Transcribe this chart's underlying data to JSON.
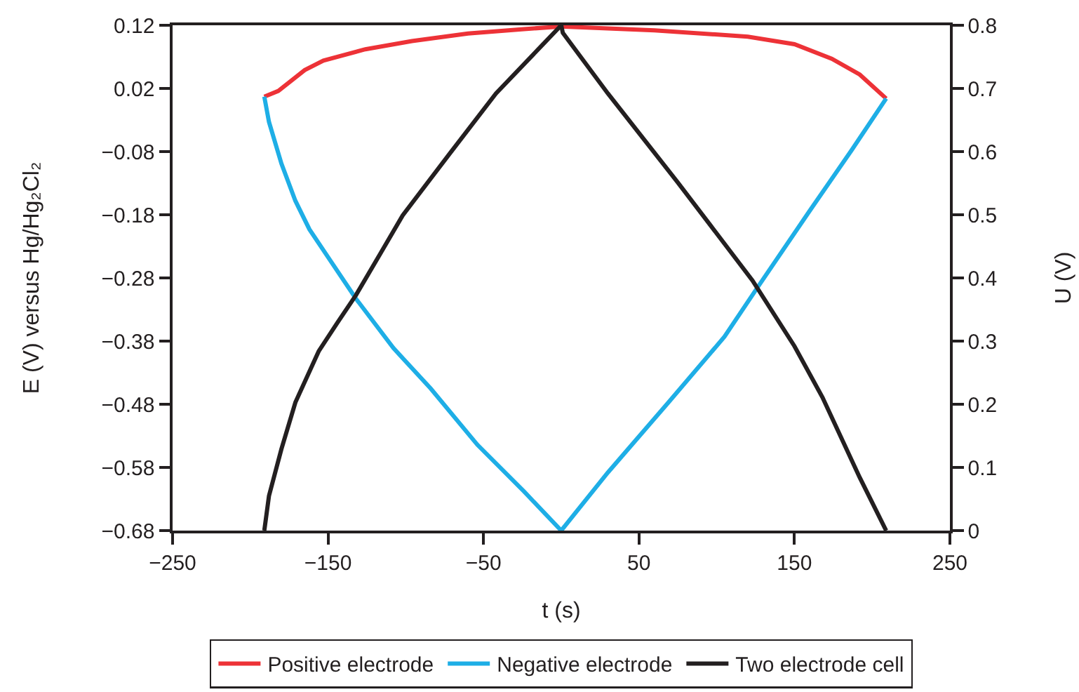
{
  "chart_data": {
    "type": "line",
    "xlabel": "t (s)",
    "ylabel": "E (V) versus Hg/Hg₂Cl₂",
    "y2label": "U (V)",
    "xlim": [
      -250,
      250
    ],
    "xticks": [
      -250,
      -150,
      -50,
      50,
      150,
      250
    ],
    "ylim": [
      -0.68,
      0.12
    ],
    "yticks": [
      -0.68,
      -0.58,
      -0.48,
      -0.38,
      -0.28,
      -0.18,
      -0.08,
      0.02,
      0.12
    ],
    "y2lim": [
      0,
      0.8
    ],
    "y2ticks": [
      0,
      0.1,
      0.2,
      0.3,
      0.4,
      0.5,
      0.6,
      0.7,
      0.8
    ],
    "legend": "bottom",
    "line_style": "solid",
    "series": [
      {
        "name": "Positive electrode",
        "color": "#ed3237",
        "x": [
          -191,
          -182,
          -165,
          -153,
          -126,
          -96,
          -60,
          -24,
          0,
          60,
          120,
          150,
          174,
          192,
          209
        ],
        "values": [
          0.007,
          0.016,
          0.049,
          0.064,
          0.082,
          0.095,
          0.107,
          0.114,
          0.118,
          0.112,
          0.102,
          0.09,
          0.067,
          0.042,
          0.004
        ]
      },
      {
        "name": "Negative electrode",
        "color": "#1eaee6",
        "x": [
          -191,
          -188,
          -180,
          -171,
          -162,
          -150,
          -132,
          -108,
          -84,
          -54,
          -24,
          0,
          30,
          69,
          105,
          126,
          160,
          187,
          209
        ],
        "values": [
          0.007,
          -0.033,
          -0.099,
          -0.158,
          -0.203,
          -0.247,
          -0.313,
          -0.391,
          -0.455,
          -0.544,
          -0.618,
          -0.68,
          -0.588,
          -0.477,
          -0.373,
          -0.296,
          -0.173,
          -0.077,
          0.004
        ]
      },
      {
        "name": "Two electrode cell",
        "color": "#231f20",
        "axis": "y2",
        "x": [
          -191,
          -188,
          -180,
          -171,
          -156,
          -144,
          -132,
          -116,
          -102,
          -72,
          -42,
          0,
          1,
          30,
          75,
          123,
          150,
          168,
          192,
          209
        ],
        "values": [
          0,
          0.055,
          0.129,
          0.203,
          0.284,
          0.329,
          0.373,
          0.44,
          0.499,
          0.596,
          0.692,
          0.8,
          0.788,
          0.692,
          0.551,
          0.396,
          0.292,
          0.211,
          0.084,
          0
        ]
      }
    ]
  }
}
